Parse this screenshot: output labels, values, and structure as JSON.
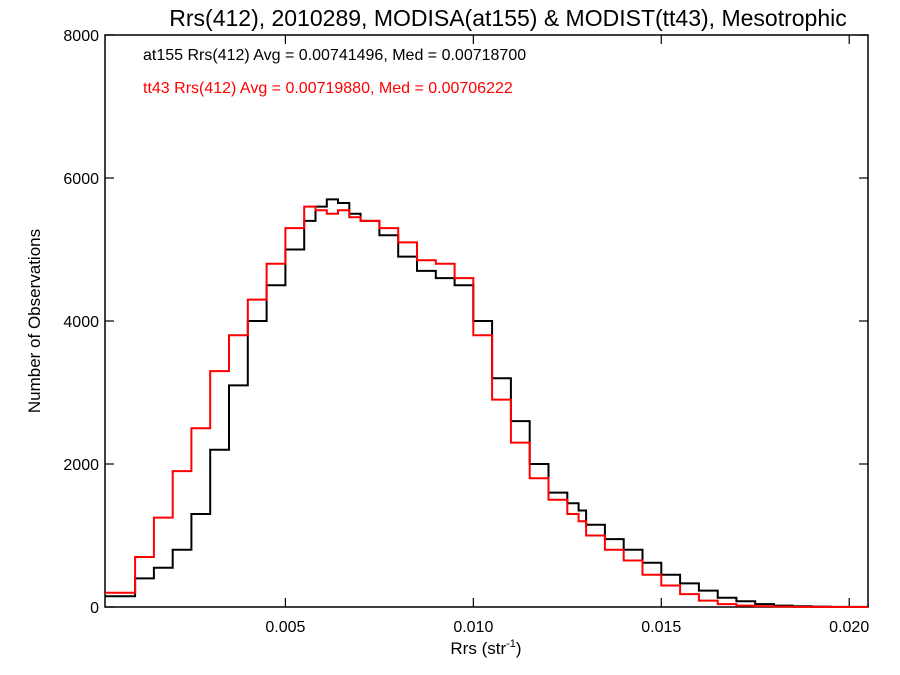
{
  "chart_data": {
    "type": "line",
    "step": true,
    "title": "Rrs(412), 2010289, MODISA(at155) & MODIST(tt43), Mesotrophic",
    "xlabel": "Rrs (str",
    "xlabel_sup": "-1",
    "xlabel_end": ")",
    "ylabel": "Number of Observations",
    "xlim": [
      0.0002,
      0.0205
    ],
    "ylim": [
      0,
      8000
    ],
    "x_ticks": [
      0.005,
      0.01,
      0.015,
      0.02
    ],
    "x_tick_labels": [
      "0.005",
      "0.010",
      "0.015",
      "0.020"
    ],
    "y_ticks": [
      0,
      2000,
      4000,
      6000,
      8000
    ],
    "y_tick_labels": [
      "0",
      "2000",
      "4000",
      "6000",
      "8000"
    ],
    "grid": false,
    "legend_position": "top-left",
    "series": [
      {
        "label": "at155 Rrs(412) Avg = 0.00741496, Med = 0.00718700",
        "color": "#000000",
        "x": [
          0.0002,
          0.001,
          0.0015,
          0.002,
          0.0025,
          0.003,
          0.0035,
          0.004,
          0.0045,
          0.005,
          0.0055,
          0.0058,
          0.0061,
          0.0064,
          0.0067,
          0.007,
          0.0075,
          0.008,
          0.0085,
          0.009,
          0.0095,
          0.01,
          0.0105,
          0.011,
          0.0115,
          0.012,
          0.0125,
          0.0128,
          0.013,
          0.0135,
          0.014,
          0.0145,
          0.015,
          0.0155,
          0.016,
          0.0165,
          0.017,
          0.0175,
          0.018,
          0.0185,
          0.019,
          0.0195,
          0.02,
          0.0205
        ],
        "y": [
          150,
          400,
          550,
          800,
          1300,
          2200,
          3100,
          4000,
          4500,
          5000,
          5400,
          5600,
          5700,
          5650,
          5500,
          5400,
          5200,
          4900,
          4700,
          4600,
          4500,
          4000,
          3200,
          2600,
          2000,
          1600,
          1450,
          1350,
          1150,
          950,
          800,
          620,
          450,
          330,
          230,
          130,
          80,
          40,
          20,
          10,
          5,
          2,
          1,
          0
        ]
      },
      {
        "label": "tt43 Rrs(412) Avg = 0.00719880, Med = 0.00706222",
        "color": "#ff0000",
        "x": [
          0.0002,
          0.001,
          0.0015,
          0.002,
          0.0025,
          0.003,
          0.0035,
          0.004,
          0.0045,
          0.005,
          0.0055,
          0.0058,
          0.0061,
          0.0064,
          0.0067,
          0.007,
          0.0075,
          0.008,
          0.0085,
          0.009,
          0.0095,
          0.01,
          0.0105,
          0.011,
          0.0115,
          0.012,
          0.0125,
          0.0128,
          0.013,
          0.0135,
          0.014,
          0.0145,
          0.015,
          0.0155,
          0.016,
          0.0165,
          0.017,
          0.0175,
          0.018,
          0.0185,
          0.019,
          0.0195,
          0.02,
          0.0205
        ],
        "y": [
          200,
          700,
          1250,
          1900,
          2500,
          3300,
          3800,
          4300,
          4800,
          5300,
          5600,
          5550,
          5500,
          5550,
          5450,
          5400,
          5300,
          5100,
          4850,
          4800,
          4600,
          3800,
          2900,
          2300,
          1800,
          1500,
          1300,
          1200,
          1000,
          800,
          650,
          450,
          300,
          180,
          90,
          40,
          20,
          10,
          5,
          2,
          1,
          0,
          0,
          0
        ]
      }
    ]
  }
}
